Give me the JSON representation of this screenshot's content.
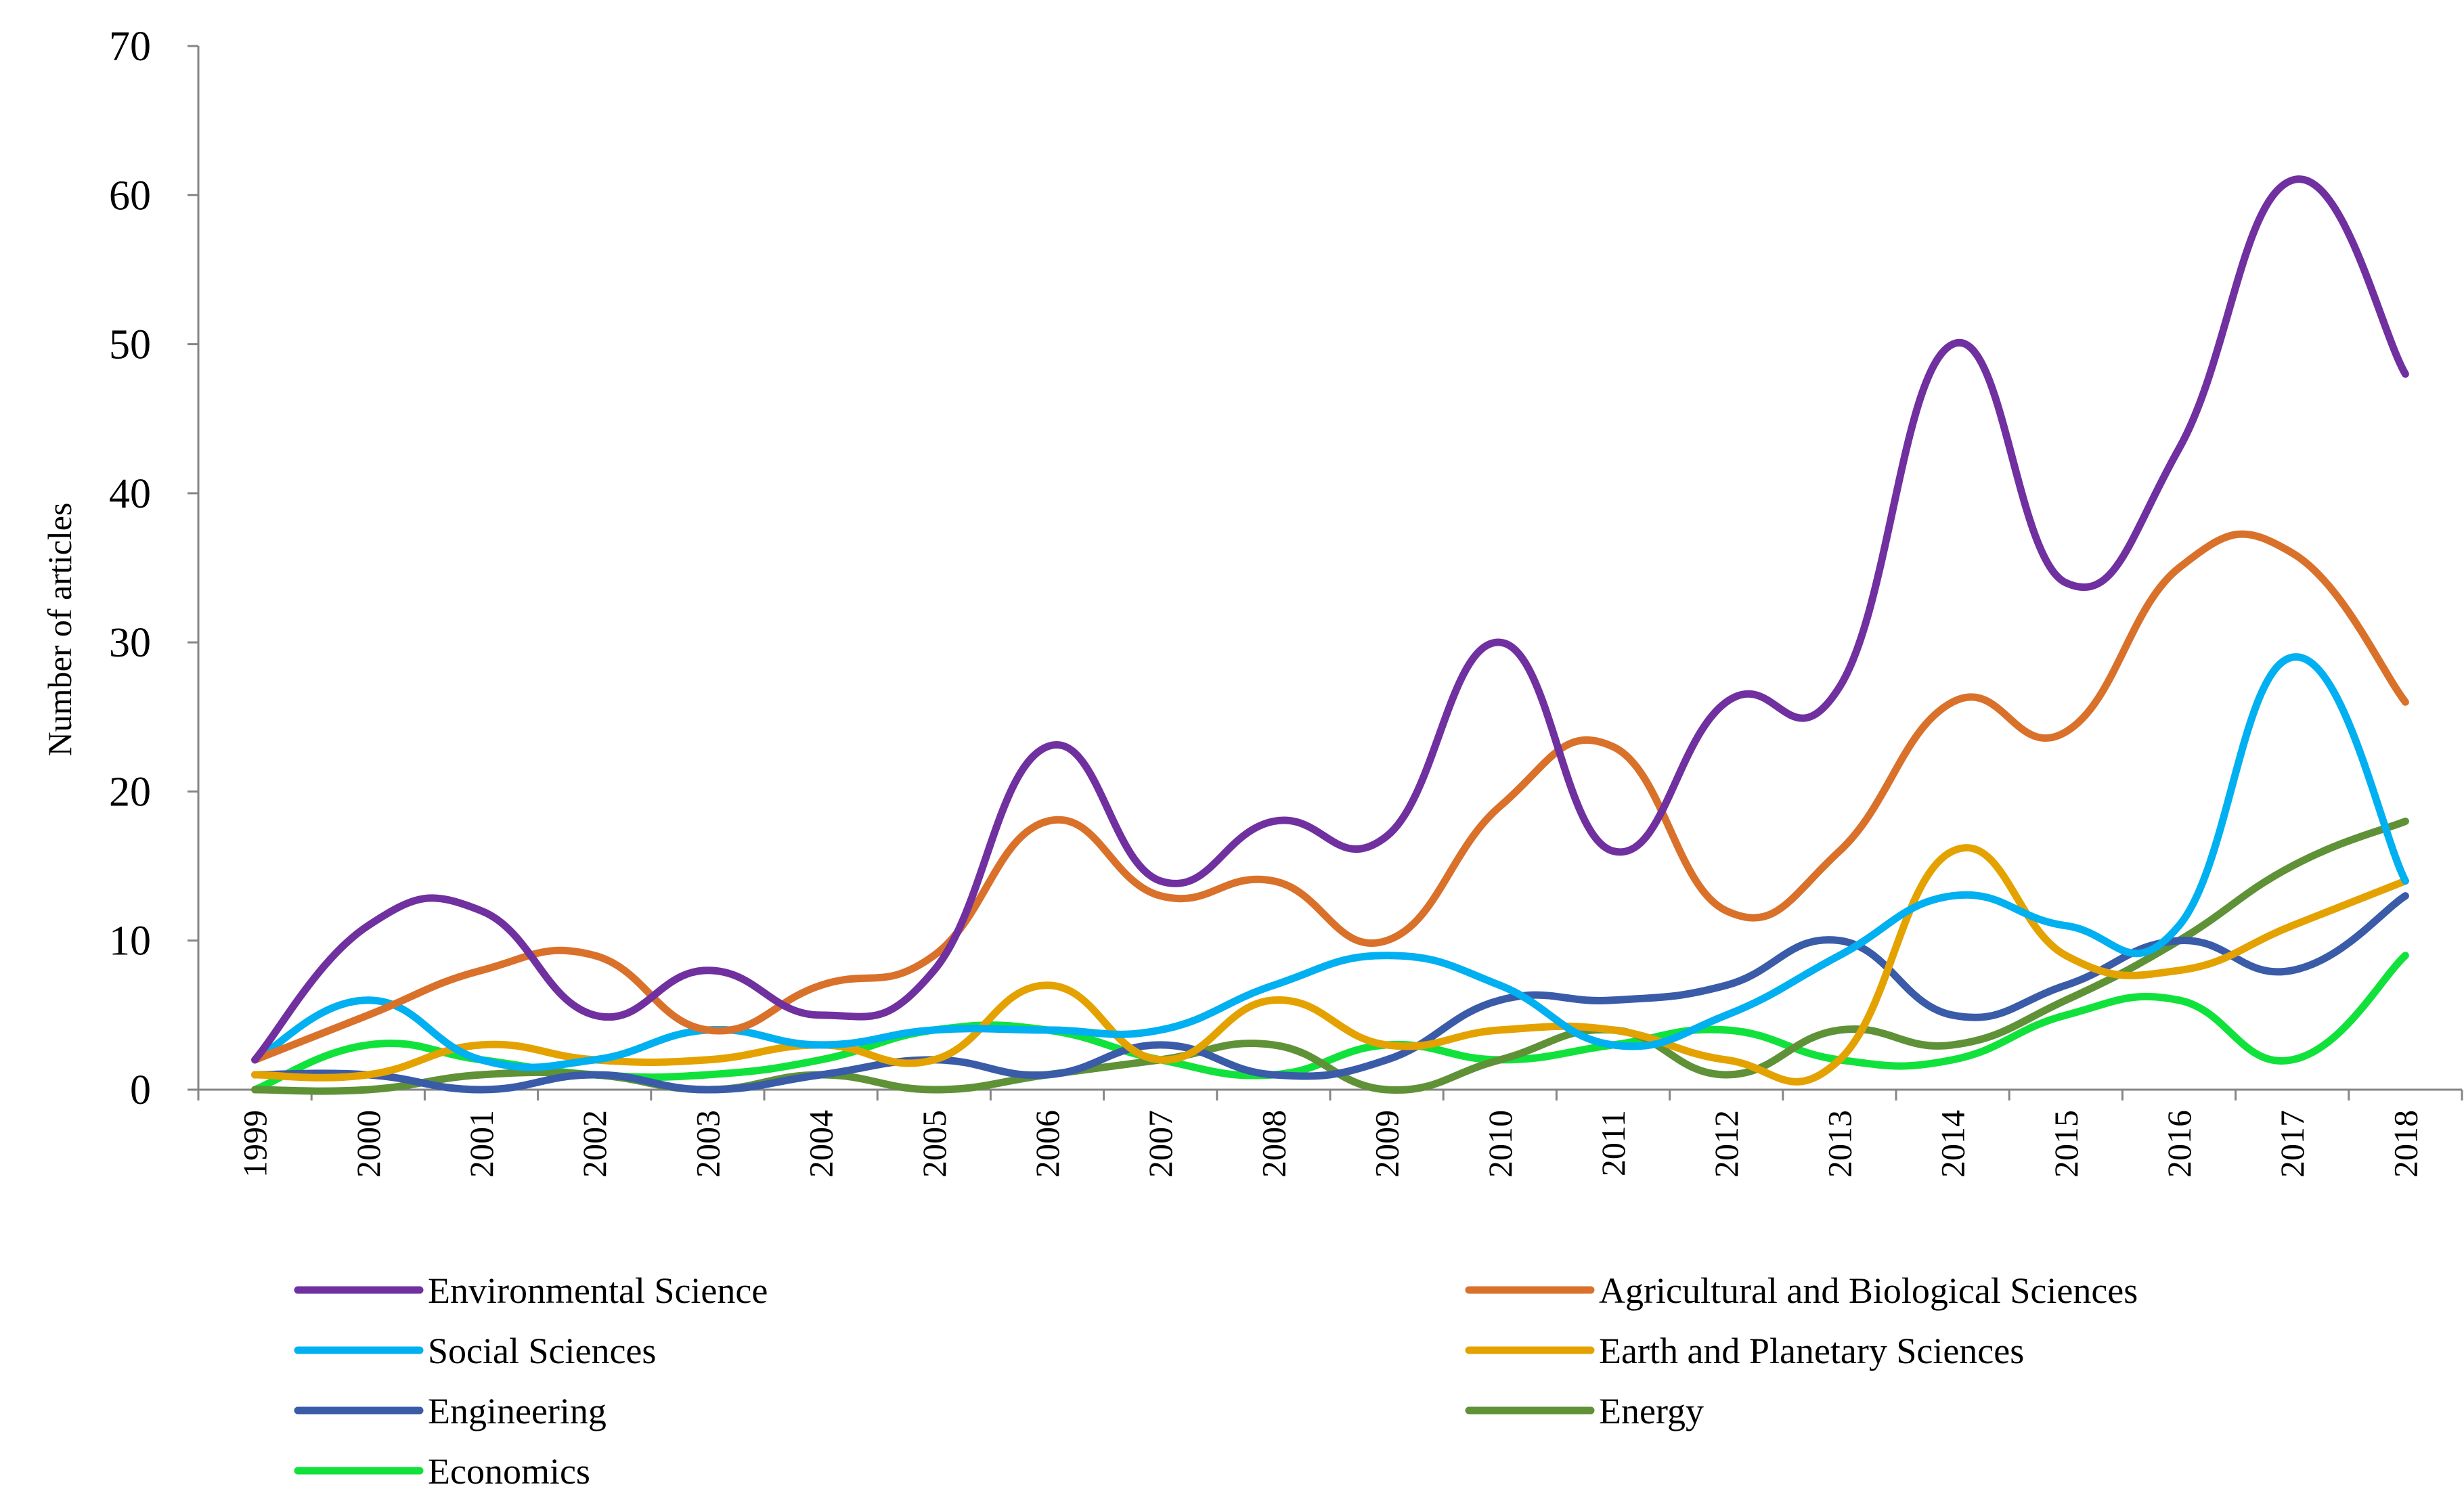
{
  "chart_data": {
    "type": "line",
    "title": "",
    "xlabel": "",
    "ylabel": "Number of articles",
    "ylim": [
      0,
      70
    ],
    "yticks": [
      0,
      10,
      20,
      30,
      40,
      50,
      60,
      70
    ],
    "categories": [
      "1999",
      "2000",
      "2001",
      "2002",
      "2003",
      "2004",
      "2005",
      "2006",
      "2007",
      "2008",
      "2009",
      "2010",
      "2011",
      "2012",
      "2013",
      "2014",
      "2015",
      "2016",
      "2017",
      "2018"
    ],
    "legend_position": "bottom",
    "series": [
      {
        "name": "Environmental Science",
        "color": "#7030A0",
        "values": [
          2,
          11,
          12,
          5,
          8,
          5,
          8,
          23,
          14,
          18,
          17,
          30,
          16,
          26,
          27,
          50,
          34,
          43,
          61,
          48
        ]
      },
      {
        "name": "Agricultural and Biological Sciences",
        "color": "#D9712B",
        "values": [
          2,
          5,
          8,
          9,
          4,
          7,
          9,
          18,
          13,
          14,
          10,
          19,
          23,
          12,
          16,
          26,
          24,
          35,
          36,
          26
        ]
      },
      {
        "name": "Social Sciences",
        "color": "#00B0F0",
        "values": [
          2,
          6,
          2,
          2,
          4,
          3,
          4,
          4,
          4,
          7,
          9,
          7,
          3,
          5,
          9,
          13,
          11,
          11,
          29,
          14
        ]
      },
      {
        "name": "Earth and Planetary Sciences",
        "color": "#E4A200",
        "values": [
          1,
          1,
          3,
          2,
          2,
          3,
          2,
          7,
          2,
          6,
          3,
          4,
          4,
          2,
          2,
          16,
          9,
          8,
          11,
          14
        ]
      },
      {
        "name": "Engineering",
        "color": "#3A5BA8",
        "values": [
          1,
          1,
          0,
          1,
          0,
          1,
          2,
          1,
          3,
          1,
          2,
          6,
          6,
          7,
          10,
          5,
          7,
          10,
          8,
          13
        ]
      },
      {
        "name": "Energy",
        "color": "#5F9137",
        "values": [
          0,
          0,
          1,
          1,
          0,
          1,
          0,
          1,
          2,
          3,
          0,
          2,
          4,
          1,
          4,
          3,
          6,
          10,
          15,
          18
        ]
      },
      {
        "name": "Economics",
        "color": "#11E23B",
        "values": [
          0,
          3,
          2,
          1,
          1,
          2,
          4,
          4,
          2,
          1,
          3,
          2,
          3,
          4,
          2,
          2,
          5,
          6,
          2,
          9
        ]
      }
    ]
  }
}
